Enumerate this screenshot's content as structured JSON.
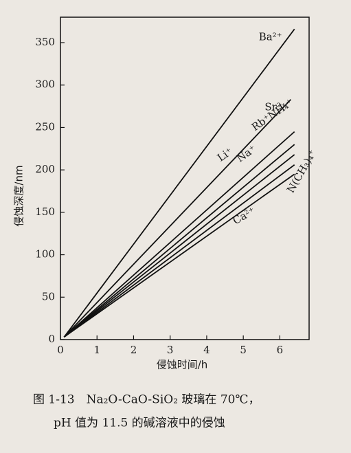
{
  "chart_data": {
    "type": "line",
    "xlabel": "侵蚀时间/h",
    "ylabel": "侵蚀深度/nm",
    "caption": [
      "图 1-13　Na₂O-CaO-SiO₂ 玻璃在 70℃，",
      "pH 值为 11.5 的碱溶液中的侵蚀"
    ],
    "xlim": [
      0,
      6.8
    ],
    "ylim": [
      0,
      380
    ],
    "xticks": [
      0,
      1,
      2,
      3,
      4,
      5,
      6
    ],
    "yticks": [
      0,
      50,
      100,
      150,
      200,
      250,
      300,
      350
    ],
    "series": [
      {
        "name": "Ba²⁺",
        "color": "#111",
        "x": [
          0.1,
          6.4
        ],
        "values": [
          3,
          366
        ]
      },
      {
        "name": "Sr²⁺",
        "color": "#111",
        "x": [
          0.1,
          6.3
        ],
        "values": [
          3,
          283
        ]
      },
      {
        "name": "Rb⁺NH₄⁺",
        "color": "#111",
        "x": [
          0.1,
          6.4
        ],
        "values": [
          3,
          245
        ]
      },
      {
        "name": "Li⁺",
        "color": "#111",
        "x": [
          0.1,
          6.4
        ],
        "values": [
          3,
          230
        ]
      },
      {
        "name": "Na⁺",
        "color": "#111",
        "x": [
          0.1,
          6.4
        ],
        "values": [
          3,
          218
        ]
      },
      {
        "name": "N(CH₃)₄⁺",
        "color": "#111",
        "x": [
          0.1,
          6.4
        ],
        "values": [
          3,
          206
        ]
      },
      {
        "name": "Ca²⁺",
        "color": "#111",
        "x": [
          0.1,
          6.4
        ],
        "values": [
          3,
          195
        ]
      }
    ]
  }
}
